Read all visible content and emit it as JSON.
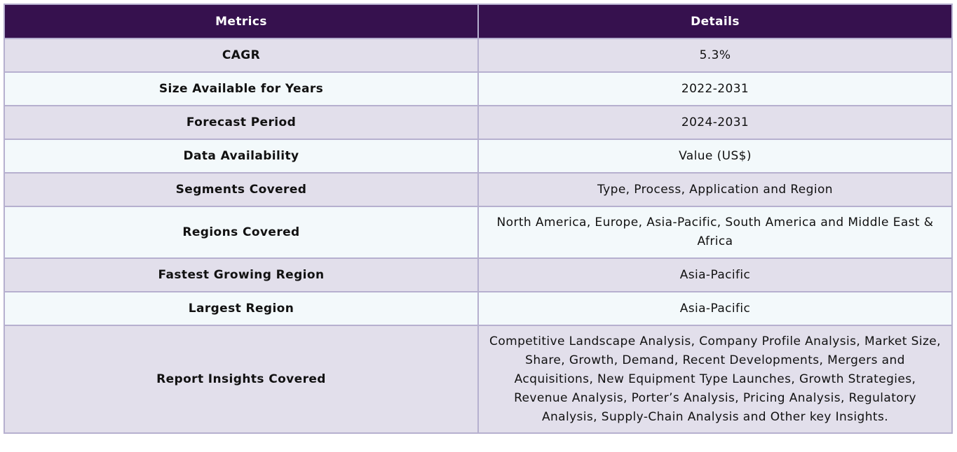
{
  "table": {
    "headers": [
      "Metrics",
      "Details"
    ],
    "rows": [
      {
        "metric": "CAGR",
        "detail": "5.3%"
      },
      {
        "metric": "Size Available for Years",
        "detail": "2022-2031"
      },
      {
        "metric": "Forecast Period",
        "detail": "2024-2031"
      },
      {
        "metric": "Data Availability",
        "detail": "Value (US$)"
      },
      {
        "metric": "Segments Covered",
        "detail": "Type, Process, Application and Region"
      },
      {
        "metric": "Regions Covered",
        "detail": "North America, Europe, Asia-Pacific, South America and Middle East & Africa"
      },
      {
        "metric": "Fastest Growing Region",
        "detail": "Asia-Pacific"
      },
      {
        "metric": "Largest Region",
        "detail": "Asia-Pacific"
      },
      {
        "metric": "Report Insights Covered",
        "detail": "Competitive Landscape Analysis, Company Profile Analysis, Market Size, Share, Growth, Demand, Recent Developments, Mergers and Acquisitions, New Equipment Type Launches, Growth Strategies, Revenue Analysis, Porter’s Analysis, Pricing Analysis, Regulatory Analysis, Supply-Chain Analysis and Other key Insights."
      }
    ]
  }
}
